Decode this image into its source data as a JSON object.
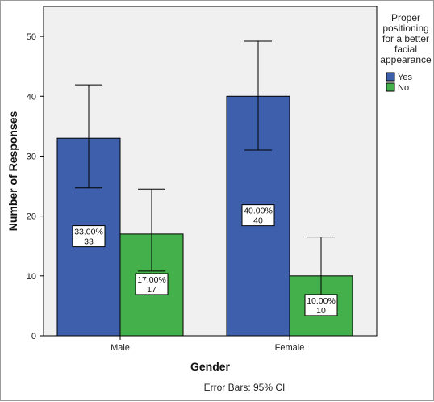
{
  "chart_data": {
    "type": "bar",
    "categories": [
      "Male",
      "Female"
    ],
    "series": [
      {
        "name": "Yes",
        "color": "#3e5fac",
        "values": [
          33,
          40
        ],
        "labels": [
          [
            "33.00%",
            "33"
          ],
          [
            "40.00%",
            "40"
          ]
        ],
        "error_low": [
          24.7,
          31.0
        ],
        "error_high": [
          41.9,
          49.2
        ]
      },
      {
        "name": "No",
        "color": "#43b04c",
        "values": [
          17,
          10
        ],
        "labels": [
          [
            "17.00%",
            "17"
          ],
          [
            "10.00%",
            "10"
          ]
        ],
        "error_low": [
          10.8,
          3.6
        ],
        "error_high": [
          24.5,
          16.5
        ]
      }
    ],
    "xlabel": "Gender",
    "ylabel": "Number of Responses",
    "ylim": [
      0,
      55
    ],
    "yticks": [
      0,
      10,
      20,
      30,
      40,
      50
    ],
    "legend": {
      "title_lines": [
        "Proper",
        "positioning",
        "for a better",
        "facial",
        "appearance"
      ],
      "placement": "right"
    },
    "caption": "Error Bars: 95% CI",
    "plot_background": "#f0f0f0"
  }
}
